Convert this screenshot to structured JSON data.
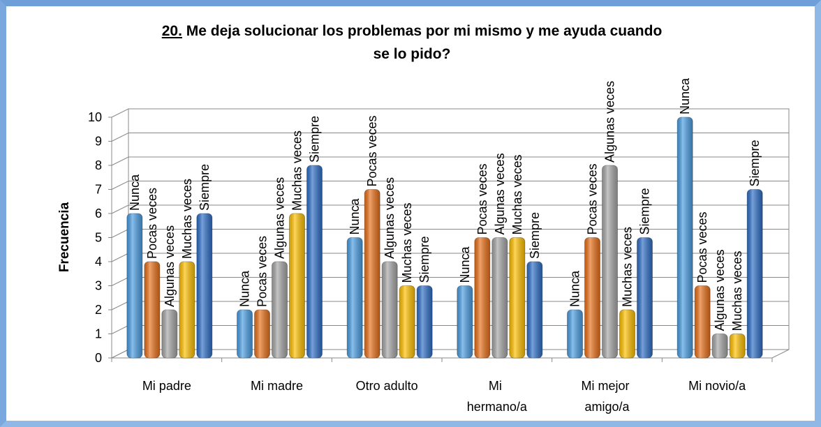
{
  "chart_data": {
    "type": "bar",
    "title_number": "20.",
    "title": "Me deja solucionar los problemas por mi mismo y me ayuda cuando se lo pido?",
    "y_label": "Frecuencia",
    "categories": [
      "Mi padre",
      "Mi madre",
      "Otro adulto",
      "Mi hermano/a",
      "Mi mejor amigo/a",
      "Mi novio/a"
    ],
    "series": [
      {
        "name": "Nunca",
        "color": "#4a9de2",
        "values": [
          6,
          2,
          5,
          3,
          2,
          10
        ]
      },
      {
        "name": "Pocas veces",
        "color": "#e8701a",
        "values": [
          4,
          2,
          7,
          5,
          5,
          3
        ]
      },
      {
        "name": "Algunas veces",
        "color": "#a6a6a6",
        "values": [
          2,
          4,
          4,
          5,
          8,
          1
        ]
      },
      {
        "name": "Muchas veces",
        "color": "#ffc000",
        "values": [
          4,
          6,
          3,
          5,
          2,
          1
        ]
      },
      {
        "name": "Siempre",
        "color": "#2e6ec6",
        "values": [
          6,
          8,
          3,
          4,
          5,
          7
        ]
      }
    ],
    "ylim": [
      0,
      10
    ],
    "yticks": [
      0,
      1,
      2,
      3,
      4,
      5,
      6,
      7,
      8,
      9,
      10
    ],
    "grid": true
  }
}
